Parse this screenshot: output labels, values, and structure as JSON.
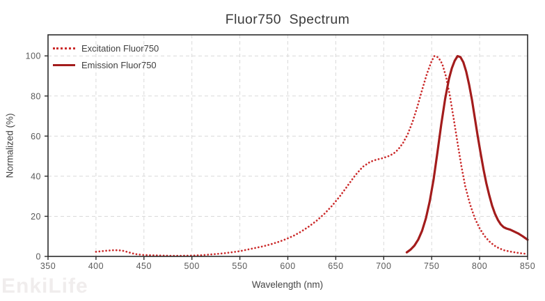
{
  "watermark": {
    "text": "EnkiLife"
  },
  "colors": {
    "excitation": "#cb2a2a",
    "emission": "#a31c1c",
    "grid": "#d9d9d9",
    "spine": "#2b2b2b",
    "tick_label": "#5a5a5a",
    "title_text": "#3a3a3a"
  },
  "chart_data": {
    "type": "line",
    "title": "Fluor750  Spectrum",
    "xlabel": "Wavelength (nm)",
    "ylabel": "Normalized (%)",
    "xlim": [
      350,
      850
    ],
    "ylim": [
      0,
      110.5
    ],
    "x_ticks": [
      350,
      400,
      450,
      500,
      550,
      600,
      650,
      700,
      750,
      800,
      850
    ],
    "y_ticks": [
      0,
      20,
      40,
      60,
      80,
      100
    ],
    "grid": true,
    "legend_position": "top-left",
    "series": [
      {
        "name": "Excitation Fluor750",
        "style": "dotted",
        "color": "#cb2a2a",
        "peak_nm": 753,
        "x": [
          400,
          406,
          412,
          418,
          423,
          428,
          433,
          438,
          443,
          448,
          455,
          462,
          470,
          478,
          486,
          494,
          502,
          510,
          518,
          526,
          534,
          542,
          550,
          558,
          566,
          574,
          582,
          590,
          598,
          606,
          614,
          622,
          630,
          638,
          646,
          654,
          662,
          670,
          678,
          686,
          692,
          698,
          704,
          710,
          715,
          720,
          725,
          730,
          735,
          740,
          745,
          750,
          753,
          757,
          761,
          765,
          769,
          773,
          777,
          781,
          785,
          790,
          795,
          800,
          805,
          810,
          815,
          820,
          826,
          832,
          838,
          844,
          850
        ],
        "y": [
          2.3,
          2.6,
          2.9,
          3.1,
          3.1,
          2.8,
          2.2,
          1.5,
          1.0,
          0.8,
          0.6,
          0.5,
          0.4,
          0.3,
          0.3,
          0.35,
          0.45,
          0.6,
          0.9,
          1.2,
          1.6,
          2.1,
          2.6,
          3.4,
          4.2,
          5.0,
          6.0,
          7.2,
          8.6,
          10.3,
          12.4,
          14.9,
          17.8,
          21.2,
          25.2,
          29.8,
          35.0,
          40.3,
          44.6,
          47.2,
          48.2,
          48.9,
          49.8,
          51.2,
          53.3,
          56.5,
          61.0,
          67.0,
          74.5,
          83.0,
          91.0,
          97.5,
          100.0,
          99.2,
          96.0,
          89.5,
          80.0,
          68.5,
          56.5,
          45.0,
          35.0,
          26.0,
          19.0,
          14.0,
          10.2,
          7.5,
          5.5,
          4.1,
          3.0,
          2.4,
          1.9,
          1.5,
          1.2
        ]
      },
      {
        "name": "Emission Fluor750",
        "style": "solid",
        "color": "#a31c1c",
        "peak_nm": 777,
        "x": [
          724,
          728,
          732,
          736,
          740,
          744,
          748,
          752,
          756,
          760,
          764,
          768,
          771,
          774,
          777,
          780,
          783,
          786,
          789,
          792,
          795,
          798,
          801,
          804,
          807,
          810,
          813,
          816,
          819,
          822,
          825,
          828,
          832,
          836,
          840,
          845,
          850
        ],
        "y": [
          2.0,
          3.4,
          5.4,
          8.4,
          12.8,
          19.0,
          27.5,
          38.5,
          52.0,
          66.0,
          78.5,
          88.5,
          93.8,
          97.6,
          99.9,
          99.4,
          96.8,
          92.2,
          85.8,
          78.0,
          69.0,
          60.0,
          51.5,
          43.5,
          36.5,
          30.5,
          25.3,
          21.3,
          18.2,
          16.0,
          14.6,
          13.9,
          13.3,
          12.4,
          11.5,
          10.0,
          8.3
        ]
      }
    ]
  }
}
